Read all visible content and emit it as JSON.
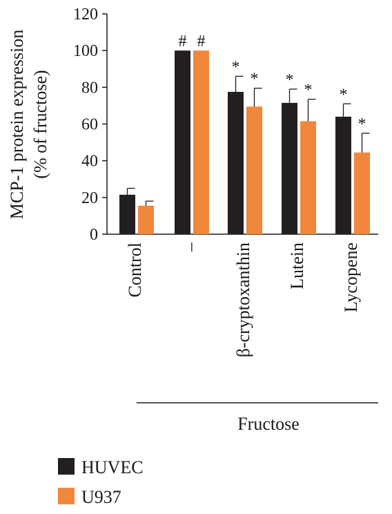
{
  "chart_data": {
    "type": "bar",
    "ylabel": "MCP-1 protein expression",
    "ylabel_sub": "(% of fructose)",
    "ylim": [
      0,
      120
    ],
    "yticks": [
      "0",
      "20",
      "40",
      "60",
      "80",
      "100",
      "120"
    ],
    "categories": [
      "Control",
      "–",
      "β-cryptoxanthin",
      "Lutein",
      "Lycopene"
    ],
    "group_label": "Fructose",
    "series": [
      {
        "name": "HUVEC",
        "color": "#231f20",
        "values": [
          21.5,
          100,
          77.5,
          71.5,
          64
        ],
        "errors": [
          3.5,
          0,
          8.5,
          7.5,
          7
        ],
        "annotations": [
          "",
          "#",
          "*",
          "*",
          "*"
        ]
      },
      {
        "name": "U937",
        "color": "#f0873c",
        "values": [
          15.5,
          100,
          69.5,
          61.5,
          44.5
        ],
        "errors": [
          2.5,
          0,
          10,
          12,
          10.5
        ],
        "annotations": [
          "",
          "#",
          "*",
          "*",
          "*"
        ]
      }
    ],
    "grid": false,
    "legend_position": "bottom-left"
  }
}
